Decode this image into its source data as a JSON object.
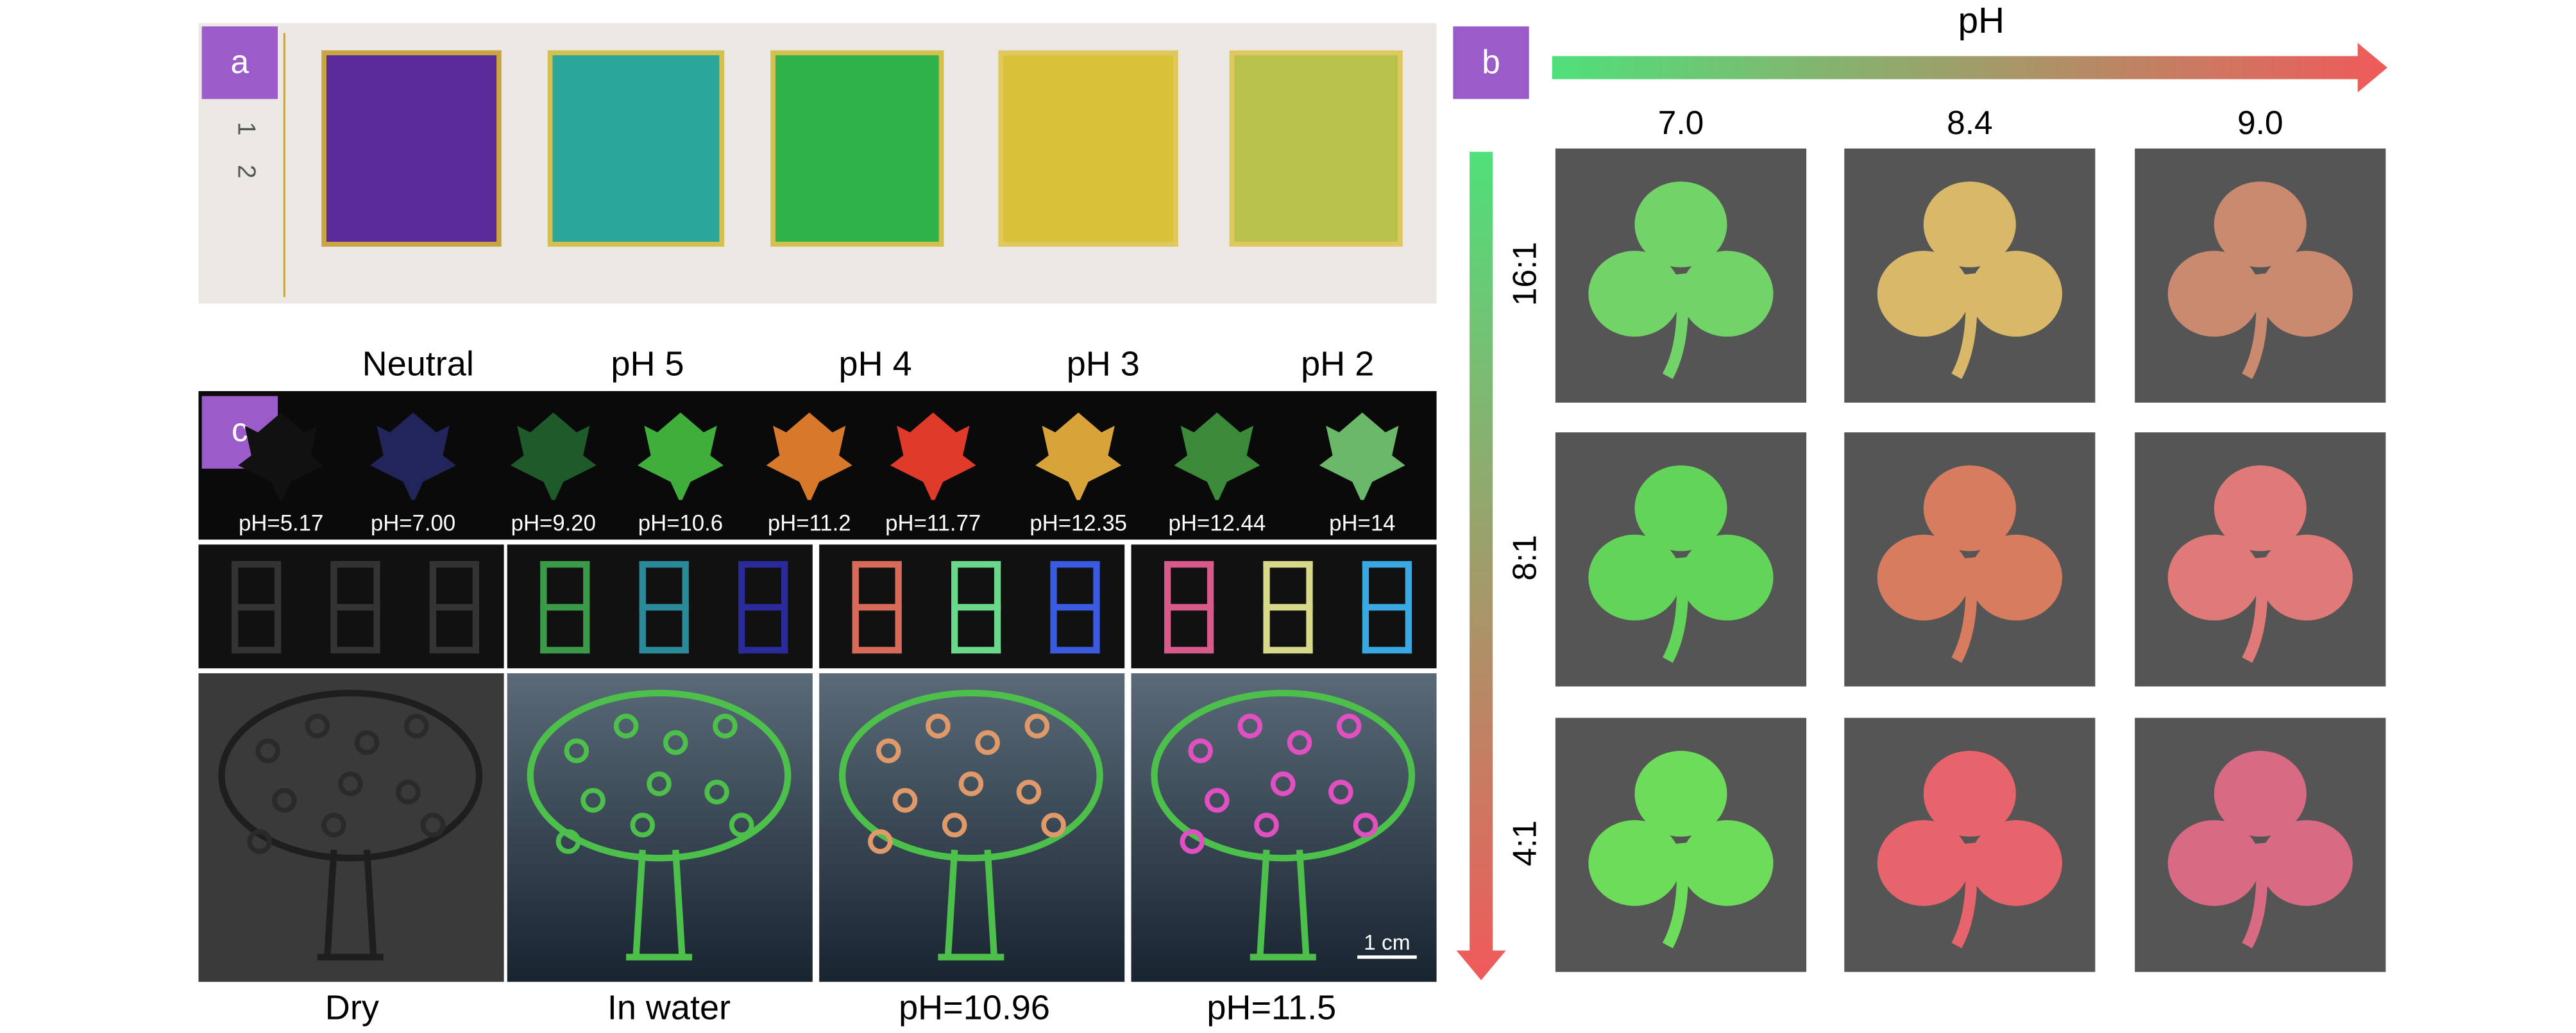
{
  "panel_a": {
    "label": "a",
    "ruler": [
      "1",
      "2"
    ]
  },
  "panel_b": {
    "label": "b",
    "axis_label": "pH",
    "columns": [
      "7.0",
      "8.4",
      "9.0"
    ],
    "rows": [
      "16:1",
      "8:1",
      "4:1"
    ]
  },
  "panel_c": {
    "label": "c",
    "top_labels": [
      "Neutral",
      "pH 5",
      "pH 4",
      "pH 3",
      "pH 2"
    ],
    "ph_values": [
      "pH=5.17",
      "pH=7.00",
      "pH=9.20",
      "pH=10.6",
      "pH=11.2",
      "pH=11.77",
      "pH=12.35",
      "pH=12.44",
      "pH=14"
    ],
    "bottom_labels": [
      "Dry",
      "In water",
      "pH=10.96",
      "pH=11.5"
    ],
    "scale_bar": "1 cm"
  }
}
